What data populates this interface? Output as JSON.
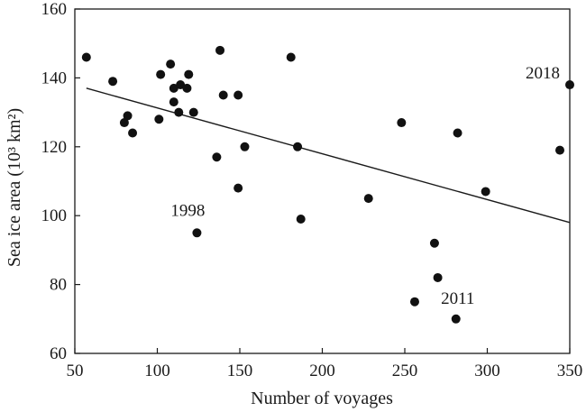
{
  "chart_data": {
    "type": "scatter",
    "title": "",
    "xlabel": "Number of voyages",
    "ylabel": "Sea ice area (10³ km²)",
    "xlim": [
      50,
      350
    ],
    "ylim": [
      60,
      160
    ],
    "xticks": [
      50,
      100,
      150,
      200,
      250,
      300,
      350
    ],
    "yticks": [
      60,
      80,
      100,
      120,
      140,
      160
    ],
    "tick_labels_x": [
      "50",
      "100",
      "150",
      "200",
      "250",
      "300",
      "350"
    ],
    "tick_labels_y": [
      "60",
      "80",
      "100",
      "120",
      "140",
      "160"
    ],
    "grid": false,
    "points": [
      {
        "x": 57,
        "y": 146
      },
      {
        "x": 73,
        "y": 139
      },
      {
        "x": 80,
        "y": 127
      },
      {
        "x": 82,
        "y": 129
      },
      {
        "x": 85,
        "y": 124
      },
      {
        "x": 101,
        "y": 128
      },
      {
        "x": 102,
        "y": 141
      },
      {
        "x": 108,
        "y": 144
      },
      {
        "x": 110,
        "y": 137
      },
      {
        "x": 110,
        "y": 133
      },
      {
        "x": 113,
        "y": 130
      },
      {
        "x": 114,
        "y": 138
      },
      {
        "x": 118,
        "y": 137
      },
      {
        "x": 119,
        "y": 141
      },
      {
        "x": 122,
        "y": 130
      },
      {
        "x": 124,
        "y": 95,
        "label": "1998"
      },
      {
        "x": 136,
        "y": 117
      },
      {
        "x": 138,
        "y": 148
      },
      {
        "x": 140,
        "y": 135
      },
      {
        "x": 149,
        "y": 135
      },
      {
        "x": 149,
        "y": 108
      },
      {
        "x": 153,
        "y": 120
      },
      {
        "x": 181,
        "y": 146
      },
      {
        "x": 185,
        "y": 120
      },
      {
        "x": 187,
        "y": 99
      },
      {
        "x": 228,
        "y": 105
      },
      {
        "x": 248,
        "y": 127
      },
      {
        "x": 256,
        "y": 75
      },
      {
        "x": 268,
        "y": 92
      },
      {
        "x": 270,
        "y": 82
      },
      {
        "x": 281,
        "y": 70,
        "label": "2011"
      },
      {
        "x": 282,
        "y": 124
      },
      {
        "x": 299,
        "y": 107
      },
      {
        "x": 344,
        "y": 119
      },
      {
        "x": 350,
        "y": 138,
        "label": "2018"
      }
    ],
    "trendline": {
      "x": [
        57,
        350
      ],
      "y": [
        137,
        98
      ]
    },
    "colors": {
      "points": "#111111",
      "axes": "#1a1a1a",
      "trendline": "#1a1a1a"
    }
  }
}
